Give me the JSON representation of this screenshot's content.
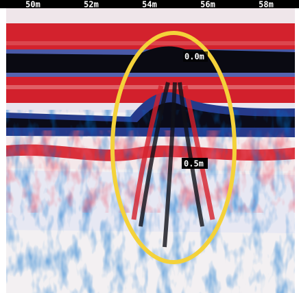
{
  "x_axis": {
    "labels": [
      "50m",
      "52m",
      "54m",
      "56m",
      "58m"
    ]
  },
  "depth_labels": [
    "0.0m",
    "0.5m"
  ]
}
